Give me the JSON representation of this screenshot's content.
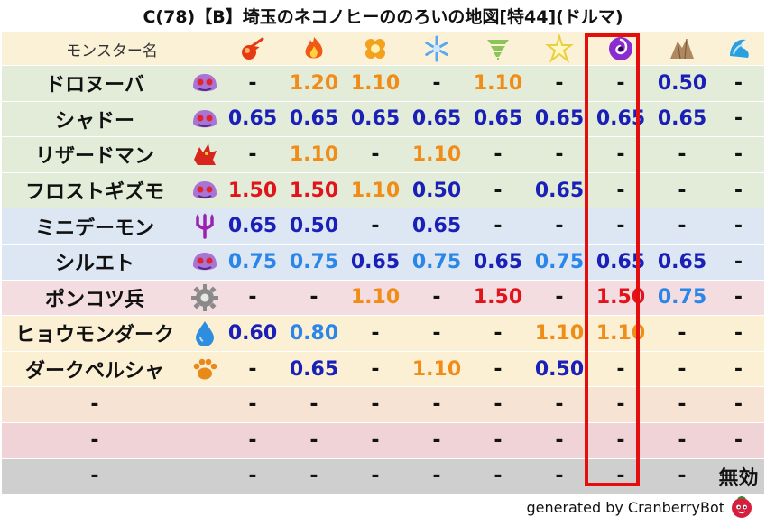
{
  "title": "C(78)【B】埼玉のネコノヒーののろいの地図[特44](ドルマ)",
  "header": {
    "name_label": "モンスター名",
    "bg": "#fbf1d6",
    "elements": [
      {
        "icon": "mera-fireball-icon",
        "color": "#e63a10"
      },
      {
        "icon": "gira-flame-icon",
        "color": "#f05a14"
      },
      {
        "icon": "io-explosion-icon",
        "color": "#f4a21c"
      },
      {
        "icon": "hyado-snowflake-icon",
        "color": "#5aa8f0"
      },
      {
        "icon": "bagi-tornado-icon",
        "color": "#8bc45a"
      },
      {
        "icon": "dein-lightning-icon",
        "color": "#e8d040"
      },
      {
        "icon": "doruma-dark-vortex-icon",
        "color": "#8a2ccf"
      },
      {
        "icon": "jibaria-rock-icon",
        "color": "#b08860"
      },
      {
        "icon": "water-wave-icon",
        "color": "#2aa0e0"
      }
    ]
  },
  "rows": [
    {
      "name": "ドロヌーバ",
      "icon": "slime-monster-icon",
      "bg": "#e3ecd9",
      "values": [
        "-",
        "1.20",
        "1.10",
        "-",
        "1.10",
        "-",
        "-",
        "0.50",
        "-"
      ]
    },
    {
      "name": "シャドー",
      "icon": "slime-monster-icon",
      "bg": "#e3ecd9",
      "values": [
        "0.65",
        "0.65",
        "0.65",
        "0.65",
        "0.65",
        "0.65",
        "0.65",
        "0.65",
        "-"
      ]
    },
    {
      "name": "リザードマン",
      "icon": "dragon-monster-icon",
      "bg": "#e3ecd9",
      "values": [
        "-",
        "1.10",
        "-",
        "1.10",
        "-",
        "-",
        "-",
        "-",
        "-"
      ]
    },
    {
      "name": "フロストギズモ",
      "icon": "slime-monster-icon",
      "bg": "#e3ecd9",
      "values": [
        "1.50",
        "1.50",
        "1.10",
        "0.50",
        "-",
        "0.65",
        "-",
        "-",
        "-"
      ]
    },
    {
      "name": "ミニデーモン",
      "icon": "devil-trident-icon",
      "bg": "#dce7f3",
      "values": [
        "0.65",
        "0.50",
        "-",
        "0.65",
        "-",
        "-",
        "-",
        "-",
        "-"
      ]
    },
    {
      "name": "シルエト",
      "icon": "slime-monster-icon",
      "bg": "#dce7f3",
      "values": [
        "0.75",
        "0.75",
        "0.65",
        "0.75",
        "0.65",
        "0.75",
        "0.65",
        "0.65",
        "-"
      ]
    },
    {
      "name": "ポンコツ兵",
      "icon": "machine-gear-icon",
      "bg": "#f3dde1",
      "values": [
        "-",
        "-",
        "1.10",
        "-",
        "1.50",
        "-",
        "1.50",
        "0.75",
        "-"
      ]
    },
    {
      "name": "ヒョウモンダーク",
      "icon": "water-drop-icon",
      "bg": "#fbf0d4",
      "values": [
        "0.60",
        "0.80",
        "-",
        "-",
        "-",
        "1.10",
        "1.10",
        "-",
        "-"
      ]
    },
    {
      "name": "ダークペルシャ",
      "icon": "paw-icon",
      "bg": "#fbf0d4",
      "values": [
        "-",
        "0.65",
        "-",
        "1.10",
        "-",
        "0.50",
        "-",
        "-",
        "-"
      ]
    },
    {
      "name": "-",
      "icon": "",
      "bg": "#f7e3d4",
      "values": [
        "-",
        "-",
        "-",
        "-",
        "-",
        "-",
        "-",
        "-",
        "-"
      ]
    },
    {
      "name": "-",
      "icon": "",
      "bg": "#f0d3d6",
      "values": [
        "-",
        "-",
        "-",
        "-",
        "-",
        "-",
        "-",
        "-",
        "-"
      ]
    },
    {
      "name": "-",
      "icon": "",
      "bg": "#cfcfcf",
      "values": [
        "-",
        "-",
        "-",
        "-",
        "-",
        "-",
        "-",
        "-",
        "無効"
      ]
    }
  ],
  "value_colors": {
    "1.50": "#e0141a",
    "1.20": "#f08c18",
    "1.10": "#f08c18",
    "0.50": "#1a1fb8",
    "0.60": "#1a1fb8",
    "0.65": "#1a1fb8",
    "0.75": "#2a86e8",
    "0.80": "#2a86e8"
  },
  "highlight": {
    "column_index": 6,
    "color": "#e40e0e"
  },
  "footer": {
    "text": "generated by CranberryBot",
    "icon": "cranberry-bot-icon"
  }
}
